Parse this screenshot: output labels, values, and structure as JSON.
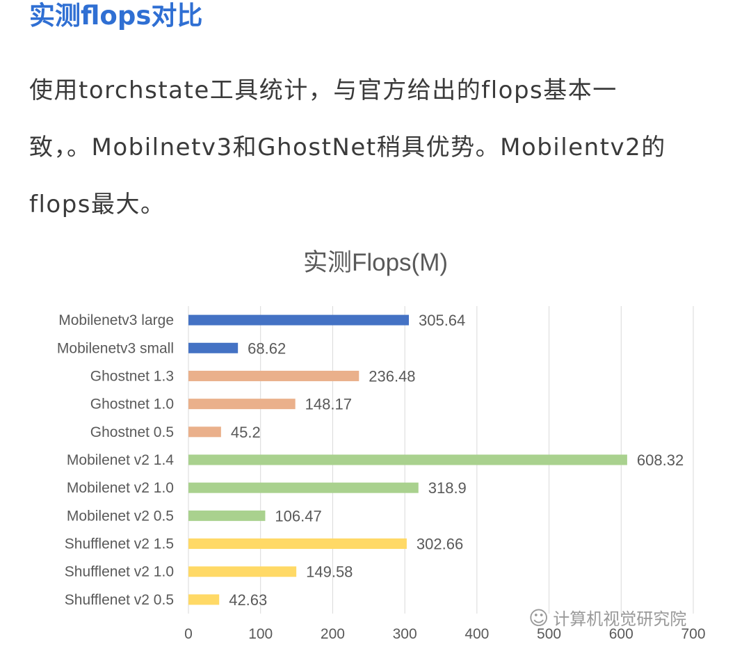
{
  "article": {
    "heading": "实测flops对比",
    "line1": "使用torchstate工具统计，与官方给出的flops基本一",
    "line2": "致，。Mobilnetv3和GhostNet稍具优势。Mobilentv2的",
    "line3": "flops最大。"
  },
  "watermark": {
    "icon": "wechat-icon",
    "text": "计算机视觉研究院"
  },
  "colors": {
    "blue": "#4472c4",
    "orange": "#eab08b",
    "green": "#a9d18e",
    "yellow": "#ffd966",
    "grid": "#d9d9d9",
    "heading": "#2f6fd3"
  },
  "chart_data": {
    "type": "bar",
    "orientation": "horizontal",
    "title": "实测Flops(M)",
    "categories": [
      "Mobilenetv3 large",
      "Mobilenetv3 small",
      "Ghostnet 1.3",
      "Ghostnet 1.0",
      "Ghostnet 0.5",
      "Mobilenet v2 1.4",
      "Mobilenet v2 1.0",
      "Mobilenet v2 0.5",
      "Shufflenet v2 1.5",
      "Shufflenet v2 1.0",
      "Shufflenet v2 0.5"
    ],
    "values": [
      305.64,
      68.62,
      236.48,
      148.17,
      45.2,
      608.32,
      318.9,
      106.47,
      302.66,
      149.58,
      42.63
    ],
    "value_labels": [
      "305.64",
      "68.62",
      "236.48",
      "148.17",
      "45.2",
      "608.32",
      "318.9",
      "106.47",
      "302.66",
      "149.58",
      "42.63"
    ],
    "bar_colors": [
      "#4472c4",
      "#4472c4",
      "#eab08b",
      "#eab08b",
      "#eab08b",
      "#a9d18e",
      "#a9d18e",
      "#a9d18e",
      "#ffd966",
      "#ffd966",
      "#ffd966"
    ],
    "x_ticks": [
      "0",
      "100",
      "200",
      "300",
      "400",
      "500",
      "600",
      "700"
    ],
    "xlim": [
      0,
      700
    ],
    "grid": "vertical",
    "xlabel": "",
    "ylabel": ""
  }
}
